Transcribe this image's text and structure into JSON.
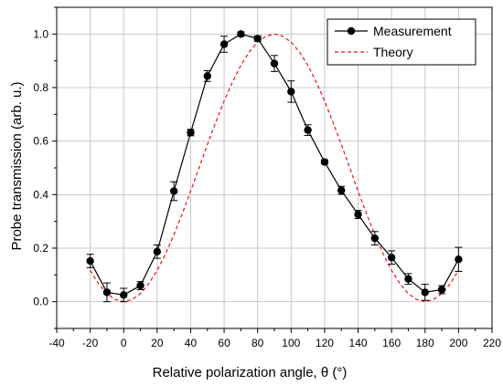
{
  "chart_data": {
    "type": "line",
    "title": "",
    "xlabel": "Relative polarization angle, θ (°)",
    "ylabel": "Probe transmission (arb. u.)",
    "xlim": [
      -40,
      220
    ],
    "ylim": [
      -0.1,
      1.1
    ],
    "x_ticks": [
      -40,
      -20,
      0,
      20,
      40,
      60,
      80,
      100,
      120,
      140,
      160,
      180,
      200,
      220
    ],
    "x_tick_labels": [
      "-40",
      "-20",
      "0",
      "20",
      "40",
      "60",
      "80",
      "100",
      "120",
      "140",
      "160",
      "180",
      "200",
      "220"
    ],
    "y_ticks": [
      0.0,
      0.2,
      0.4,
      0.6,
      0.8,
      1.0
    ],
    "y_tick_labels": [
      "0.0",
      "0.2",
      "0.4",
      "0.6",
      "0.8",
      "1.0"
    ],
    "grid": true,
    "legend_position": "top-right",
    "series": [
      {
        "name": "Measurement",
        "style": "solid-with-markers",
        "color": "#000000",
        "x": [
          -20,
          -10,
          0,
          10,
          20,
          30,
          40,
          50,
          60,
          70,
          80,
          90,
          100,
          110,
          120,
          130,
          140,
          150,
          160,
          170,
          180,
          190,
          200
        ],
        "y": [
          0.152,
          0.035,
          0.025,
          0.06,
          0.187,
          0.413,
          0.632,
          0.843,
          0.962,
          1.0,
          0.983,
          0.89,
          0.785,
          0.641,
          0.522,
          0.416,
          0.326,
          0.237,
          0.165,
          0.085,
          0.035,
          0.045,
          0.158
        ],
        "error": [
          0.025,
          0.035,
          0.025,
          0.015,
          0.025,
          0.035,
          0.012,
          0.02,
          0.03,
          0.008,
          0.01,
          0.03,
          0.04,
          0.02,
          0.008,
          0.015,
          0.015,
          0.025,
          0.025,
          0.02,
          0.03,
          0.015,
          0.045
        ]
      },
      {
        "name": "Theory",
        "style": "dashed",
        "color": "#e8121c",
        "x": [
          -20,
          -15,
          -10,
          -5,
          0,
          5,
          10,
          15,
          20,
          25,
          30,
          35,
          40,
          45,
          50,
          55,
          60,
          65,
          70,
          75,
          80,
          85,
          90,
          95,
          100,
          105,
          110,
          115,
          120,
          125,
          130,
          135,
          140,
          145,
          150,
          155,
          160,
          165,
          170,
          175,
          180,
          185,
          190,
          195,
          200
        ],
        "y": [
          0.117,
          0.067,
          0.03,
          0.008,
          0.0,
          0.008,
          0.03,
          0.067,
          0.117,
          0.179,
          0.25,
          0.329,
          0.413,
          0.5,
          0.587,
          0.671,
          0.75,
          0.821,
          0.883,
          0.933,
          0.97,
          0.992,
          1.0,
          0.992,
          0.97,
          0.933,
          0.883,
          0.821,
          0.75,
          0.671,
          0.587,
          0.5,
          0.413,
          0.329,
          0.25,
          0.179,
          0.117,
          0.067,
          0.03,
          0.008,
          0.0,
          0.008,
          0.03,
          0.067,
          0.117
        ]
      }
    ]
  }
}
